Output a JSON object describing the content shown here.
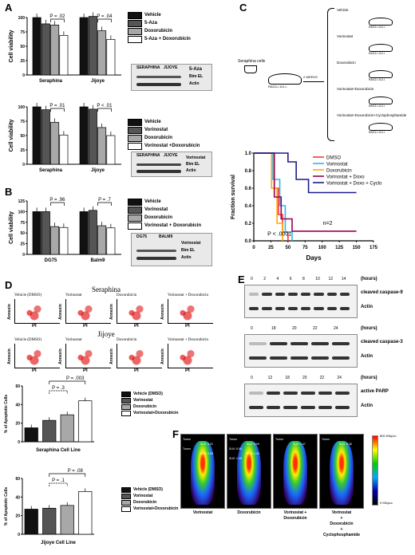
{
  "panels": {
    "A": "A",
    "B": "B",
    "C": "C",
    "D": "D",
    "E": "E",
    "F": "F"
  },
  "chart_data": [
    {
      "id": "A1",
      "type": "bar",
      "ylabel": "Cell viability",
      "ylim": [
        0,
        100
      ],
      "categories": [
        "Seraphina",
        "Jijoye"
      ],
      "series": [
        {
          "name": "Vehicle",
          "values": [
            100,
            100
          ]
        },
        {
          "name": "5-Aza",
          "values": [
            89,
            102
          ]
        },
        {
          "name": "Doxorubicin",
          "values": [
            87,
            77
          ]
        },
        {
          "name": "5-Aza + Doxorubicin",
          "values": [
            69,
            62
          ]
        }
      ],
      "p_values": [
        "P = .02",
        "P = .04"
      ]
    },
    {
      "id": "A2",
      "type": "bar",
      "ylabel": "Cell viability",
      "ylim": [
        0,
        100
      ],
      "categories": [
        "Seraphina",
        "Jijoye"
      ],
      "series": [
        {
          "name": "Vehicle",
          "values": [
            100,
            100
          ]
        },
        {
          "name": "Vorinostat",
          "values": [
            95,
            96
          ]
        },
        {
          "name": "Doxorubicin",
          "values": [
            73,
            64
          ]
        },
        {
          "name": "Vorinostat +Doxorubicin",
          "values": [
            51,
            50
          ]
        }
      ],
      "p_values": [
        "P = .01",
        "P < .01"
      ]
    },
    {
      "id": "B",
      "type": "bar",
      "ylabel": "Cell viability",
      "ylim": [
        0,
        125
      ],
      "categories": [
        "DG75",
        "Balm9"
      ],
      "series": [
        {
          "name": "Vehicle",
          "values": [
            100,
            100
          ]
        },
        {
          "name": "Vorinostat",
          "values": [
            100,
            103
          ]
        },
        {
          "name": "Doxorubicin",
          "values": [
            65,
            67
          ]
        },
        {
          "name": "Vorinostat + Doxorubicin",
          "values": [
            63,
            62
          ]
        }
      ],
      "p_values": [
        "P = .96",
        "P = .7"
      ]
    },
    {
      "id": "C",
      "type": "line",
      "xlabel": "Days",
      "ylabel": "Fraction survival",
      "xlim": [
        0,
        175
      ],
      "ylim": [
        0,
        1.0
      ],
      "series": [
        {
          "name": "DMSO",
          "color": "#ff3333",
          "x": [
            0,
            30,
            36,
            42,
            50
          ],
          "y": [
            1,
            0.6,
            0.3,
            0.1,
            0
          ]
        },
        {
          "name": "Vorinostat",
          "color": "#33b5e5",
          "x": [
            0,
            28,
            38,
            46,
            56
          ],
          "y": [
            1,
            0.7,
            0.4,
            0.1,
            0
          ]
        },
        {
          "name": "Doxorubicin",
          "color": "#ffaa00",
          "x": [
            0,
            26,
            34,
            42
          ],
          "y": [
            1,
            0.6,
            0.2,
            0
          ]
        },
        {
          "name": "Vorinostat + Doxo",
          "color": "#990055",
          "x": [
            0,
            30,
            40,
            56,
            150
          ],
          "y": [
            1,
            0.5,
            0.25,
            0.11,
            0.11
          ]
        },
        {
          "name": "Vorinostat + Doxo + Cyclo",
          "color": "#1a1a8c",
          "x": [
            0,
            50,
            62,
            80,
            150
          ],
          "y": [
            1,
            0.9,
            0.7,
            0.55,
            0.55
          ]
        }
      ],
      "annotations": [
        "n=5",
        "n=2",
        "P < .0001"
      ],
      "xticks": [
        "0",
        "25",
        "50",
        "75",
        "100",
        "125",
        "150",
        "175"
      ],
      "yticks": [
        "0.0",
        "0.2",
        "0.4",
        "0.6",
        "0.8",
        "1.0"
      ]
    },
    {
      "id": "D1",
      "type": "bar",
      "ylabel": "% of Apoptotic Cells",
      "xlabel": "Seraphina Cell Line",
      "ylim": [
        0,
        60
      ],
      "series": [
        {
          "name": "Vehicle (DMSO)",
          "values": [
            15
          ]
        },
        {
          "name": "Vorinostat",
          "values": [
            23
          ]
        },
        {
          "name": "Doxorubicin",
          "values": [
            29
          ]
        },
        {
          "name": "Vorinostat+Doxorubicin",
          "values": [
            44
          ]
        }
      ],
      "p_values": [
        "P = .003",
        "P = .3"
      ],
      "yticks": [
        "0",
        "20",
        "40",
        "60"
      ]
    },
    {
      "id": "D2",
      "type": "bar",
      "ylabel": "% of Apoptotic Cells",
      "xlabel": "Jijoye Cell Line",
      "ylim": [
        0,
        60
      ],
      "series": [
        {
          "name": "Vehicle (DMSO)",
          "values": [
            27
          ]
        },
        {
          "name": "Vorinostat",
          "values": [
            28
          ]
        },
        {
          "name": "Doxorubicin",
          "values": [
            31
          ]
        },
        {
          "name": "Vorinostat+Doxorubicin",
          "values": [
            46
          ]
        }
      ],
      "p_values": [
        "P = .08",
        "P = .1"
      ],
      "yticks": [
        "0",
        "20",
        "40",
        "60"
      ]
    }
  ],
  "blots": {
    "a1": {
      "cols": [
        "SERAPHINA",
        "JIJOYE"
      ],
      "signs": [
        "-",
        "+",
        "-",
        "+"
      ],
      "drug": "5-Aza",
      "rows": [
        "Bim EL",
        "Actin"
      ]
    },
    "a2": {
      "cols": [
        "SERAPHINA",
        "JIJOYE"
      ],
      "signs": [
        "-",
        "+",
        "-",
        "+"
      ],
      "drug": "Vorinostat",
      "rows": [
        "Bim EL",
        "Actin"
      ]
    },
    "b": {
      "cols": [
        "DG75",
        "BALM9"
      ],
      "signs": [
        "-",
        "+",
        "-",
        "+"
      ],
      "drug": "Vorinostat",
      "rows": [
        "Bim EL",
        "Actin"
      ]
    }
  },
  "schematic": {
    "source": "Seraphina cells",
    "mouse": "RAG2-/-IL2-/-",
    "interval": "2 WEEKS",
    "arms": [
      "Vehicle",
      "Vorinostat",
      "Doxorubicin",
      "Vorinostat+Doxorubicin",
      "Vorinostat+Doxorubicin+Cyclophosphamide"
    ]
  },
  "flow": {
    "cells": [
      "Seraphina",
      "Jijoye"
    ],
    "conditions": [
      "Vehicle (DMSO)",
      "Vorinostat",
      "Doxorubicin",
      "Vorinostat + Doxorubicin"
    ],
    "ylabel": "Annexin",
    "xlabel": "PI"
  },
  "western_e": [
    {
      "times": [
        "0",
        "2",
        "4",
        "6",
        "8",
        "10",
        "12",
        "14"
      ],
      "unit": "(hours)",
      "target": "cleaved caspase-9",
      "control": "Actin"
    },
    {
      "times": [
        "0",
        "18",
        "20",
        "22",
        "24"
      ],
      "unit": "(hours)",
      "target": "cleaved caspase-3",
      "control": "Actin"
    },
    {
      "times": [
        "0",
        "12",
        "18",
        "20",
        "22",
        "24"
      ],
      "unit": "(hours)",
      "target": "active PARP",
      "control": "Actin"
    }
  ],
  "pet": {
    "images": [
      {
        "label": "Vorinostat",
        "tumor": [
          "Tumor",
          "SUV: 3.22",
          "Tumor",
          "SUV: 2.08"
        ]
      },
      {
        "label": "Doxorubicin",
        "tumor": [
          "Tumor",
          "SUV: 5.09",
          "SUV: 5.05",
          "SUV: 1.33",
          "SUV: 1.49"
        ]
      },
      {
        "label": "Vorinostat + Doxorubicin",
        "tumor": [
          "Tumor",
          "SUV: 1.47"
        ]
      },
      {
        "label": "Vorinostat\n+\nDoxorubicin\n+\nCyclophosphamide",
        "tumor": [
          "Tumor",
          "SUV: 0.36"
        ]
      }
    ],
    "scale_max": "800 KBq/cc",
    "scale_min": "0 KBq/cc"
  },
  "colors": {
    "vehicle": "#111111",
    "drug1": "#555555",
    "doxorubicin": "#a8a8a8",
    "combo": "#ffffff"
  }
}
